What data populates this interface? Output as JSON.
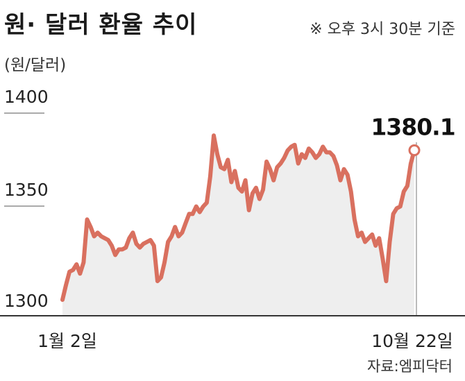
{
  "title": "원· 달러 환율 추이",
  "note": "※ 오후 3시 30분 기준",
  "unit": "(원/달러)",
  "source": "자료:엠피닥터",
  "colors": {
    "line": "#d9705f",
    "area": "#eeeeee",
    "axis": "#333333"
  },
  "chart_data": {
    "type": "area",
    "title": "원· 달러 환율 추이",
    "ylabel": "(원/달러)",
    "ylim": [
      1300,
      1400
    ],
    "yticks": [
      "1400",
      "1350",
      "1300"
    ],
    "xticks": [
      "1월 2일",
      "10월 22일"
    ],
    "grid": false,
    "last_label": "1380.1",
    "series": [
      {
        "values": [
          1300.0,
          1308.0,
          1315.0,
          1316.0,
          1319.0,
          1314.0,
          1320.0,
          1343.0,
          1339.0,
          1334.0,
          1336.0,
          1334.0,
          1333.0,
          1332.0,
          1329.0,
          1324.0,
          1327.0,
          1327.0,
          1328.0,
          1333.0,
          1336.0,
          1330.0,
          1328.0,
          1330.0,
          1331.0,
          1332.0,
          1329.0,
          1310.0,
          1312.0,
          1320.0,
          1331.0,
          1334.0,
          1339.0,
          1334.0,
          1336.0,
          1341.0,
          1346.0,
          1346.0,
          1350.0,
          1347.0,
          1350.0,
          1352.0,
          1366.0,
          1388.0,
          1378.0,
          1371.0,
          1370.0,
          1375.0,
          1363.0,
          1369.0,
          1360.0,
          1358.0,
          1364.0,
          1348.0,
          1357.0,
          1360.0,
          1354.0,
          1359.0,
          1374.0,
          1370.0,
          1364.0,
          1371.0,
          1373.0,
          1376.0,
          1380.0,
          1382.0,
          1383.0,
          1373.0,
          1378.0,
          1376.0,
          1381.0,
          1379.0,
          1376.0,
          1378.0,
          1382.0,
          1379.0,
          1379.0,
          1377.0,
          1372.0,
          1364.0,
          1370.0,
          1367.0,
          1358.0,
          1343.0,
          1334.0,
          1336.0,
          1331.0,
          1333.0,
          1335.0,
          1329.0,
          1333.0,
          1322.0,
          1310.0,
          1331.0,
          1346.0,
          1349.0,
          1350.0,
          1358.0,
          1361.0,
          1373.0,
          1380.1
        ]
      }
    ]
  }
}
